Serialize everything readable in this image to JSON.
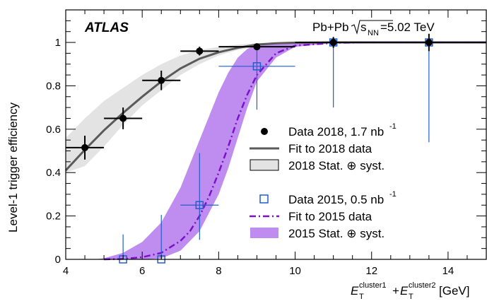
{
  "chart_data": {
    "type": "scatter",
    "experiment_label": "ATLAS",
    "collision_label": "Pb+Pb",
    "energy_label": "=5.02 TeV",
    "energy_symbol": "s",
    "energy_subscript": "NN",
    "xlabel": {
      "prefix": "E",
      "sub1": "T",
      "sup1": "cluster1",
      "plus": "+",
      "sub2": "T",
      "sup2": "cluster2",
      "unit": "[GeV]"
    },
    "ylabel": "Level-1 trigger efficiency",
    "xlim": [
      4,
      15
    ],
    "ylim": [
      0,
      1.15
    ],
    "x_ticks": [
      4,
      6,
      8,
      10,
      12,
      14
    ],
    "y_ticks": [
      0,
      0.2,
      0.4,
      0.6,
      0.8,
      1
    ],
    "x_tick_labels": [
      "4",
      "6",
      "8",
      "10",
      "12",
      "14"
    ],
    "y_tick_labels": [
      "0",
      "0.2",
      "0.4",
      "0.6",
      "0.8",
      "1"
    ],
    "colors": {
      "data2018": "#000000",
      "fit2018": "#5a5a5a",
      "band2018": "#e3e3e3",
      "data2015": "#1f5fd1",
      "fit2015": "#7b12c9",
      "band2015": "#bf8cf0"
    },
    "series": [
      {
        "name": "Data 2018, 1.7 nb",
        "name_sup": "-1",
        "marker": "filled-circle",
        "points": [
          {
            "x": 4.5,
            "y": 0.515,
            "xerr": 0.5,
            "yerr": 0.055
          },
          {
            "x": 5.5,
            "y": 0.65,
            "xerr": 0.5,
            "yerr": 0.05
          },
          {
            "x": 6.5,
            "y": 0.825,
            "xerr": 0.5,
            "yerr": 0.045
          },
          {
            "x": 7.5,
            "y": 0.96,
            "xerr": 0.5,
            "yerr": 0.02
          },
          {
            "x": 9.0,
            "y": 0.98,
            "xerr": 1.0,
            "yerr": 0.015
          },
          {
            "x": 11.0,
            "y": 1.0,
            "xerr": 1.0,
            "yerr": 0.025
          },
          {
            "x": 13.5,
            "y": 1.0,
            "xerr": 1.5,
            "yerr": 0.04
          }
        ]
      },
      {
        "name": "Fit to 2018 data",
        "line": "solid",
        "curve": {
          "x": [
            4,
            4.5,
            5,
            5.5,
            6,
            6.5,
            7,
            7.5,
            8,
            8.5,
            9,
            9.5,
            10,
            11,
            12,
            13,
            14,
            15
          ],
          "y": [
            0.41,
            0.505,
            0.595,
            0.675,
            0.75,
            0.82,
            0.88,
            0.925,
            0.955,
            0.975,
            0.99,
            0.996,
            0.999,
            1,
            1,
            1,
            1,
            1
          ]
        }
      },
      {
        "name": "2018 Stat. ⊕ syst.",
        "band": {
          "x": [
            4,
            4.5,
            5,
            5.5,
            6,
            6.5,
            7,
            7.5,
            8,
            8.5,
            9,
            9.5,
            10,
            11,
            12,
            13,
            14,
            15
          ],
          "low": [
            0.4,
            0.43,
            0.52,
            0.62,
            0.71,
            0.78,
            0.85,
            0.9,
            0.94,
            0.965,
            0.98,
            0.99,
            0.995,
            1,
            1,
            1,
            1,
            1
          ],
          "high": [
            0.56,
            0.65,
            0.73,
            0.79,
            0.85,
            0.9,
            0.94,
            0.965,
            0.98,
            0.99,
            0.997,
            1,
            1,
            1,
            1,
            1,
            1,
            1
          ]
        }
      },
      {
        "name": "Data 2015, 0.5 nb",
        "name_sup": "-1",
        "marker": "open-square",
        "points": [
          {
            "x": 5.5,
            "y": 0.0,
            "xerr": 0.0,
            "yerr_up": 0.115,
            "yerr_down": 0.0
          },
          {
            "x": 6.5,
            "y": 0.0,
            "xerr": 0.0,
            "yerr_up": 0.205,
            "yerr_down": 0.0
          },
          {
            "x": 7.5,
            "y": 0.25,
            "xerr": 0.5,
            "yerr_up": 0.24,
            "yerr_down": 0.16
          },
          {
            "x": 9.0,
            "y": 0.89,
            "xerr": 1.0,
            "yerr_up": 0.09,
            "yerr_down": 0.2
          },
          {
            "x": 11.0,
            "y": 1.0,
            "xerr": 1.0,
            "yerr_up": 0.0,
            "yerr_down": 0.3
          },
          {
            "x": 13.5,
            "y": 1.0,
            "xerr": 1.5,
            "yerr_up": 0.0,
            "yerr_down": 0.46
          }
        ]
      },
      {
        "name": "Fit to 2015 data",
        "line": "dash-dot",
        "curve": {
          "x": [
            5,
            5.5,
            6,
            6.5,
            7,
            7.25,
            7.5,
            7.75,
            8,
            8.25,
            8.5,
            8.75,
            9,
            9.5,
            10,
            11,
            12,
            15
          ],
          "y": [
            0,
            0.002,
            0.01,
            0.03,
            0.085,
            0.13,
            0.2,
            0.29,
            0.4,
            0.52,
            0.65,
            0.76,
            0.85,
            0.95,
            0.985,
            0.998,
            1,
            1
          ]
        }
      },
      {
        "name": "2015 Stat. ⊕ syst.",
        "band": {
          "x": [
            4.75,
            5,
            5.5,
            6,
            6.5,
            7,
            7.5,
            8,
            8.25,
            8.5,
            8.75,
            9,
            9.5,
            10,
            11,
            12,
            15
          ],
          "low": [
            0,
            0,
            0,
            0,
            0.005,
            0.04,
            0.13,
            0.3,
            0.42,
            0.56,
            0.7,
            0.82,
            0.93,
            0.98,
            0.998,
            1,
            1
          ],
          "high": [
            0,
            0.005,
            0.03,
            0.08,
            0.17,
            0.33,
            0.55,
            0.77,
            0.86,
            0.93,
            0.97,
            0.99,
            0.998,
            1,
            1,
            1,
            1
          ]
        }
      }
    ],
    "legend_position": "center-right"
  }
}
